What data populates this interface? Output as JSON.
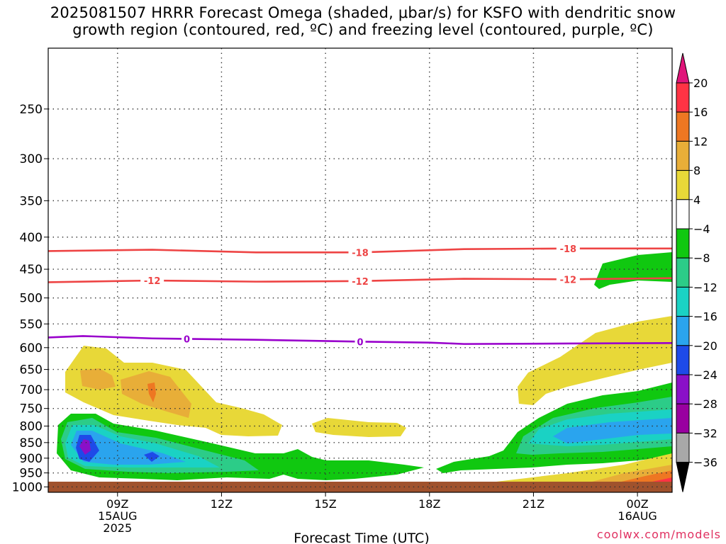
{
  "title_line1": "2025081507 HRRR Forecast Omega (shaded, μbar/s) for KSFO with dendritic snow",
  "title_line2": "growth region (contoured, red, ºC) and freezing level (contoured, purple, ºC)",
  "watermark": "coolwx.com/models",
  "chart_data": {
    "type": "heatmap",
    "xlabel": "Forecast Time (UTC)",
    "x_ticks": [
      {
        "t": 2,
        "lines": [
          "09Z",
          "15AUG",
          "2025"
        ]
      },
      {
        "t": 5,
        "lines": [
          "12Z"
        ]
      },
      {
        "t": 8,
        "lines": [
          "15Z"
        ]
      },
      {
        "t": 11,
        "lines": [
          "18Z"
        ]
      },
      {
        "t": 14,
        "lines": [
          "21Z"
        ]
      },
      {
        "t": 17,
        "lines": [
          "00Z",
          "16AUG"
        ]
      }
    ],
    "xlim": [
      0,
      18
    ],
    "ylabel": "",
    "y_ticks": [
      250,
      300,
      350,
      400,
      450,
      500,
      550,
      600,
      650,
      700,
      750,
      800,
      850,
      900,
      950,
      1000
    ],
    "ylim_hPa": [
      200,
      1020
    ],
    "y_scale": "log",
    "grid": true,
    "contours": [
      {
        "name": "-18",
        "color": "#ee4444",
        "label": "-18",
        "x": [
          0,
          3,
          6,
          9,
          12,
          15,
          18
        ],
        "p": [
          421,
          419,
          423,
          423,
          418,
          417,
          417
        ],
        "labels_at": [
          9.0,
          15.0
        ]
      },
      {
        "name": "-12",
        "color": "#ee4444",
        "label": "-12",
        "x": [
          0,
          3,
          6,
          9,
          12,
          15,
          18
        ],
        "p": [
          472,
          469,
          471,
          470,
          466,
          467,
          465
        ],
        "labels_at": [
          3.0,
          9.0,
          15.0
        ]
      },
      {
        "name": "0",
        "color": "#9900cc",
        "label": "0",
        "x": [
          0,
          1,
          3,
          6,
          9,
          11,
          12,
          15,
          18
        ],
        "p": [
          578,
          575,
          580,
          583,
          587,
          589,
          592,
          591,
          590
        ],
        "labels_at": [
          4.0,
          9.0
        ]
      }
    ],
    "colorbar": {
      "levels": [
        20,
        16,
        12,
        8,
        4,
        -4,
        -8,
        -12,
        -16,
        -20,
        -24,
        -28,
        -32,
        -36
      ],
      "colors": [
        "#ff3344",
        "#ee7722",
        "#e8ae38",
        "#e8d838",
        "#ffffff",
        "#10c810",
        "#2ccc88",
        "#1ad2c4",
        "#2aa4ee",
        "#1e4ae8",
        "#8a10c8",
        "#9900a0",
        "#a8a8a8"
      ],
      "top_extend_color": "#e0157a",
      "bottom_extend_color": "#000000"
    }
  }
}
